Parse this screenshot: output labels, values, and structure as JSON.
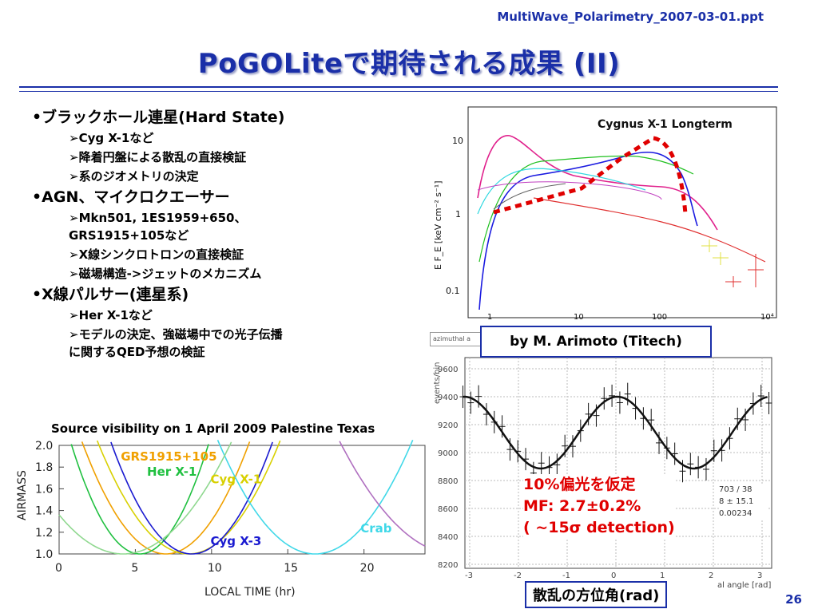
{
  "header": {
    "filename": "MultiWave_Polarimetry_2007-03-01.ppt",
    "title": "PoGOLiteで期待される成果 (II)",
    "page_number": "26"
  },
  "bullets": [
    {
      "level": 1,
      "text": "•ブラックホール連星(Hard State)"
    },
    {
      "level": 2,
      "text": "➢Cyg X-1など"
    },
    {
      "level": 2,
      "text": "➢降着円盤による散乱の直接検証"
    },
    {
      "level": 2,
      "text": "➢系のジオメトリの決定"
    },
    {
      "level": 1,
      "text": "•AGN、マイクロクエーサー"
    },
    {
      "level": 2,
      "text": "➢Mkn501, 1ES1959+650、"
    },
    {
      "level": 2,
      "text": "GRS1915+105など",
      "cont": true
    },
    {
      "level": 2,
      "text": "➢X線シンクロトロンの直接検証"
    },
    {
      "level": 2,
      "text": "➢磁場構造->ジェットのメカニズム"
    },
    {
      "level": 1,
      "text": "•X線パルサー(連星系)"
    },
    {
      "level": 2,
      "text": "➢Her X-1など"
    },
    {
      "level": 2,
      "text": "➢モデルの決定、強磁場中での光子伝播"
    },
    {
      "level": 2,
      "text": "に関するQED予想の検証",
      "cont": true
    }
  ],
  "spectrum": {
    "title": "Cygnus X-1 Longterm",
    "ylabel": "E F_E [keV cm⁻² s⁻¹]",
    "yticks": [
      "10",
      "1",
      "0.1"
    ],
    "xticks": [
      "1",
      "10",
      "100",
      "10⁴"
    ]
  },
  "credit": "by M. Arimoto (Titech)",
  "modulation": {
    "header_label": "azimuthal a",
    "ylabel": "events/bin",
    "yticks": [
      "9600",
      "9400",
      "9200",
      "9000",
      "8800",
      "8600",
      "8400",
      "8200"
    ],
    "xticks": [
      "-3",
      "-2",
      "-1",
      "0",
      "1",
      "2",
      "3"
    ],
    "xlabel_fragment": "al angle [rad]",
    "stats": [
      "703 / 38",
      "8 ± 15.1",
      "0.00234"
    ],
    "annotation": [
      "10%偏光を仮定",
      "MF: 2.7±0.2%",
      "( ~15σ detection)"
    ],
    "xaxis_label": "散乱の方位角(rad)"
  },
  "chart_data": {
    "type": "line",
    "title": "Source visibility on 1 April 2009 Palestine Texas",
    "xlabel": "LOCAL TIME (hr)",
    "ylabel": "AIRMASS",
    "xlim": [
      0,
      24
    ],
    "ylim": [
      1.0,
      2.0
    ],
    "xticks": [
      0,
      5,
      10,
      15,
      20
    ],
    "yticks": [
      "1.0",
      "1.2",
      "1.4",
      "1.6",
      "1.8",
      "2.0"
    ],
    "series": [
      {
        "name": "GRS1915+105",
        "color": "#f0a000",
        "center": 7.0,
        "halfwidth": 5.8,
        "label_pos": [
          7.2,
          1.86
        ]
      },
      {
        "name": "Her X-1",
        "color": "#20c040",
        "center": 5.3,
        "halfwidth": 4.8,
        "label_pos": [
          7.4,
          1.72
        ]
      },
      {
        "name": "Cyg X-1",
        "color": "#d8d000",
        "center": 8.5,
        "halfwidth": 6.3,
        "label_pos": [
          11.6,
          1.65
        ]
      },
      {
        "name": "Cyg X-3",
        "color": "#1a1ad0",
        "center": 8.7,
        "halfwidth": 5.6,
        "label_pos": [
          11.6,
          1.08
        ]
      },
      {
        "name": "Crab",
        "color": "#40d8e8",
        "center": 16.8,
        "halfwidth": 6.7,
        "label_pos": [
          20.8,
          1.2
        ]
      },
      {
        "name": "",
        "color": "#90d890",
        "center": 4.2,
        "halfwidth": 7.5,
        "label_pos": null
      },
      {
        "name": "",
        "color": "#b070c0",
        "center": 26.0,
        "halfwidth": 8.0,
        "label_pos": null
      }
    ]
  }
}
